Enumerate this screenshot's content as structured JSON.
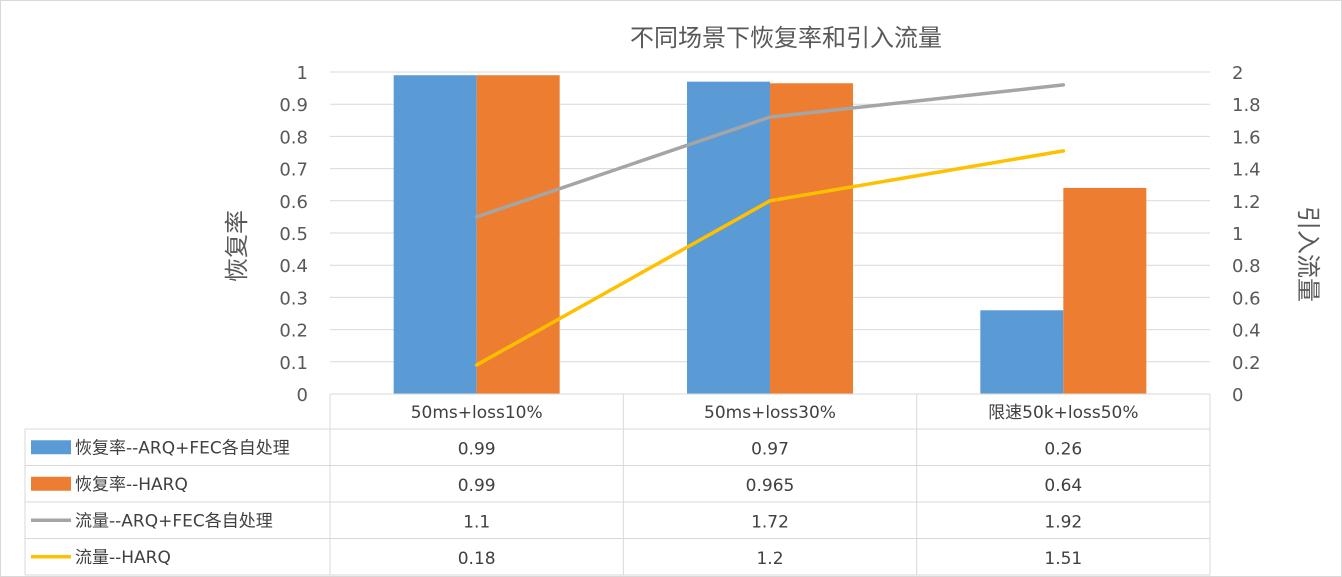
{
  "chart_data": {
    "type": "bar",
    "title": "不同场景下恢复率和引入流量",
    "categories": [
      "50ms+loss10%",
      "50ms+loss30%",
      "限速50k+loss50%"
    ],
    "ylabel": "恢复率",
    "y2label": "引入流量",
    "ylim": [
      0,
      1
    ],
    "y2lim": [
      0,
      2
    ],
    "yticks": [
      "1",
      "0.9",
      "0.8",
      "0.7",
      "0.6",
      "0.5",
      "0.4",
      "0.3",
      "0.2",
      "0.1",
      "0"
    ],
    "y2ticks": [
      "2",
      "1.8",
      "1.6",
      "1.4",
      "1.2",
      "1",
      "0.8",
      "0.6",
      "0.4",
      "0.2",
      "0"
    ],
    "grid": true,
    "legend": "data-table",
    "series": [
      {
        "name": "恢复率--ARQ+FEC各自处理",
        "type": "bar",
        "axis": "left",
        "color": "#5b9bd5",
        "values": [
          0.99,
          0.97,
          0.26
        ],
        "labels": [
          "0.99",
          "0.97",
          "0.26"
        ]
      },
      {
        "name": "恢复率--HARQ",
        "type": "bar",
        "axis": "left",
        "color": "#ed7d31",
        "values": [
          0.99,
          0.965,
          0.64
        ],
        "labels": [
          "0.99",
          "0.965",
          "0.64"
        ]
      },
      {
        "name": "流量--ARQ+FEC各自处理",
        "type": "line",
        "axis": "right",
        "color": "#a5a5a5",
        "values": [
          1.1,
          1.72,
          1.92
        ],
        "labels": [
          "1.1",
          "1.72",
          "1.92"
        ]
      },
      {
        "name": "流量--HARQ",
        "type": "line",
        "axis": "right",
        "color": "#ffc000",
        "values": [
          0.18,
          1.2,
          1.51
        ],
        "labels": [
          "0.18",
          "1.2",
          "1.51"
        ]
      }
    ]
  }
}
